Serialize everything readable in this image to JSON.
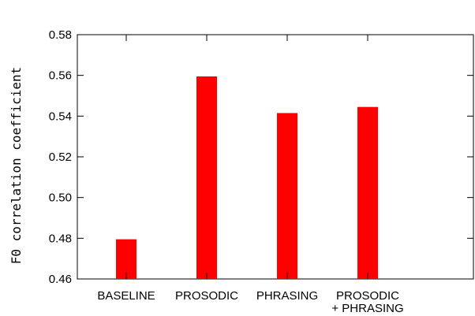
{
  "chart_data": {
    "type": "bar",
    "categories": [
      "BASELINE",
      "PROSODIC",
      "PHRASING",
      "PROSODIC\n+ PHRASING"
    ],
    "values": [
      0.4795,
      0.5595,
      0.5415,
      0.5445
    ],
    "ylabel": "F0 correlation coefficient",
    "xlabel": "",
    "title": "",
    "ylim": [
      0.46,
      0.58
    ],
    "yticks": [
      "0.46",
      "0.48",
      "0.50",
      "0.52",
      "0.54",
      "0.56",
      "0.58"
    ],
    "bar_color": "#ff0000",
    "grid": false
  }
}
